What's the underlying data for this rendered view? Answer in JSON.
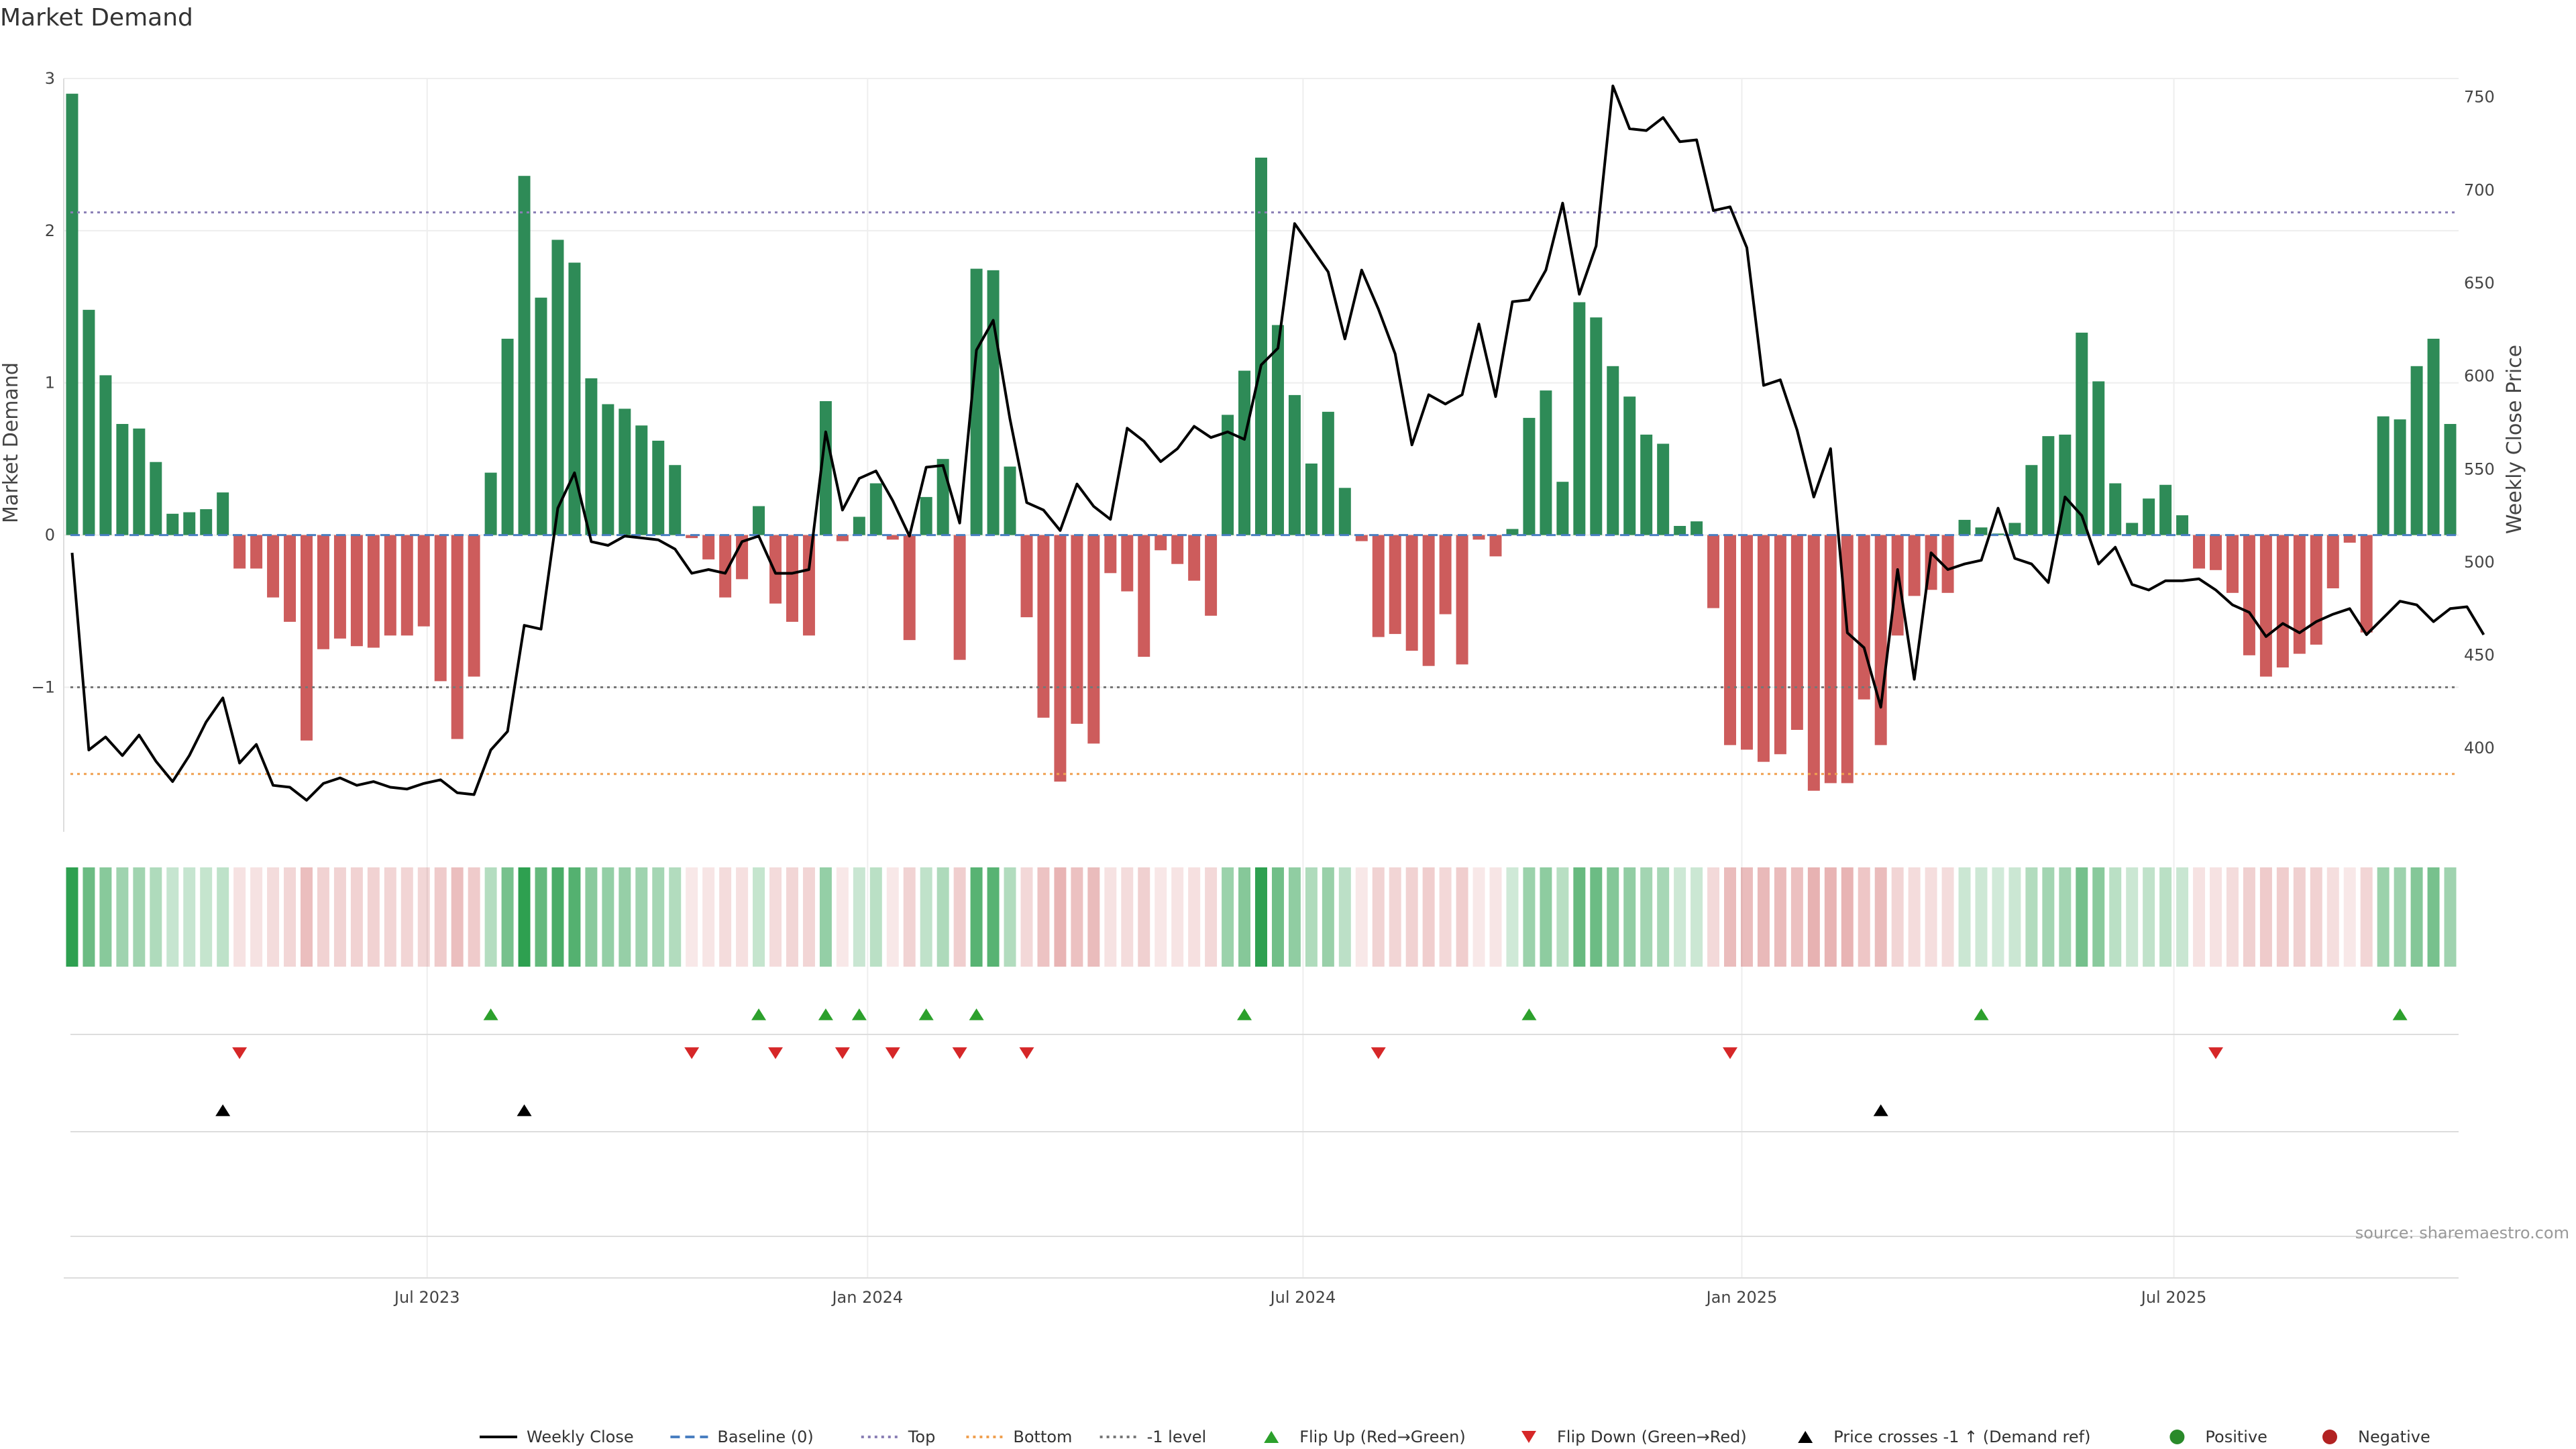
{
  "title": "Market Demand",
  "source_note": "source: sharemaestro.com",
  "chart_data": {
    "type": "bar",
    "title": "Market Demand",
    "ylabel_left": "Market Demand",
    "ylabel_right": "Weekly Close Price",
    "left_axis": {
      "ylim": [
        -1.95,
        3.0
      ],
      "ticks": [
        -1,
        0,
        1,
        2,
        3
      ],
      "tick_labels": [
        "−1",
        "0",
        "1",
        "2",
        "3"
      ]
    },
    "right_axis": {
      "ylim": [
        355,
        760
      ],
      "ticks": [
        400,
        450,
        500,
        550,
        600,
        650,
        700,
        750
      ]
    },
    "x_ticks": [
      {
        "week": 21.2,
        "label": "Jul 2023"
      },
      {
        "week": 47.5,
        "label": "Jan 2024"
      },
      {
        "week": 73.5,
        "label": "Jul 2024"
      },
      {
        "week": 99.7,
        "label": "Jan 2025"
      },
      {
        "week": 125.5,
        "label": "Jul 2025"
      }
    ],
    "reference_lines": {
      "top": 2.12,
      "bottom": -1.57,
      "minus_one": -1,
      "baseline": 0
    },
    "legend_position": "bottom-center",
    "colors": {
      "positive": "#2e8b57",
      "negative": "#cd5c5c",
      "price": "#000000",
      "top": "#8a7fb5",
      "bottom": "#f0a050",
      "flip_up": "#2ca02c",
      "flip_down": "#d62728"
    },
    "demand": [
      2.9,
      1.48,
      1.05,
      0.73,
      0.7,
      0.48,
      0.14,
      0.15,
      0.17,
      0.28,
      -0.22,
      -0.22,
      -0.41,
      -0.57,
      -1.35,
      -0.75,
      -0.68,
      -0.73,
      -0.74,
      -0.66,
      -0.66,
      -0.6,
      -0.96,
      -1.34,
      -0.93,
      0.41,
      1.29,
      2.36,
      1.56,
      1.94,
      1.79,
      1.03,
      0.86,
      0.83,
      0.72,
      0.62,
      0.46,
      -0.02,
      -0.16,
      -0.41,
      -0.29,
      0.19,
      -0.45,
      -0.57,
      -0.66,
      0.88,
      -0.04,
      0.12,
      0.34,
      -0.03,
      -0.69,
      0.25,
      0.5,
      -0.82,
      1.75,
      1.74,
      0.45,
      -0.54,
      -1.2,
      -1.62,
      -1.24,
      -1.37,
      -0.25,
      -0.37,
      -0.8,
      -0.1,
      -0.19,
      -0.3,
      -0.53,
      0.79,
      1.08,
      2.48,
      1.38,
      0.92,
      0.47,
      0.81,
      0.31,
      -0.04,
      -0.67,
      -0.65,
      -0.76,
      -0.86,
      -0.52,
      -0.85,
      -0.03,
      -0.14,
      0.04,
      0.77,
      0.95,
      0.35,
      1.53,
      1.43,
      1.11,
      0.91,
      0.66,
      0.6,
      0.06,
      0.09,
      -0.48,
      -1.38,
      -1.41,
      -1.49,
      -1.44,
      -1.28,
      -1.68,
      -1.63,
      -1.63,
      -1.08,
      -1.38,
      -0.66,
      -0.4,
      -0.36,
      -0.38,
      0.1,
      0.05,
      0.01,
      0.08,
      0.46,
      0.65,
      0.66,
      1.33,
      1.01,
      0.34,
      0.08,
      0.24,
      0.33,
      0.13,
      -0.22,
      -0.23,
      -0.38,
      -0.79,
      -0.93,
      -0.87,
      -0.78,
      -0.72,
      -0.35,
      -0.05,
      -0.64,
      0.78,
      0.76,
      1.11,
      1.29,
      0.73
    ],
    "weekly_close": [
      505,
      399,
      406,
      396,
      407,
      393,
      382,
      396,
      414,
      427,
      392,
      402,
      380,
      379,
      372,
      381,
      384,
      380,
      382,
      379,
      378,
      381,
      383,
      376,
      375,
      399,
      409,
      466,
      464,
      529,
      548,
      511,
      509,
      514,
      513,
      512,
      507,
      494,
      496,
      494,
      511,
      514,
      494,
      494,
      496,
      570,
      528,
      545,
      549,
      533,
      514,
      551,
      552,
      521,
      614,
      630,
      577,
      532,
      528,
      517,
      542,
      530,
      523,
      572,
      565,
      554,
      561,
      573,
      567,
      570,
      566,
      606,
      615,
      682,
      669,
      656,
      620,
      657,
      636,
      612,
      563,
      590,
      585,
      590,
      628,
      589,
      640,
      641,
      657,
      693,
      644,
      670,
      756,
      733,
      732,
      739,
      726,
      727,
      689,
      691,
      669,
      595,
      598,
      571,
      535,
      561,
      462,
      454,
      422,
      496,
      437,
      505,
      496,
      499,
      501,
      529,
      502,
      499,
      489,
      535,
      525,
      499,
      508,
      488,
      485,
      490,
      490,
      491,
      485,
      477,
      473,
      460,
      467,
      462,
      468,
      472,
      475,
      461,
      470,
      479,
      477,
      468,
      475,
      476,
      461
    ]
  },
  "signals": {
    "flip_up_weeks": [
      25,
      41,
      45,
      47,
      51,
      54,
      70,
      87,
      114,
      139
    ],
    "flip_down_weeks": [
      10,
      37,
      42,
      46,
      49,
      53,
      57,
      78,
      99,
      128
    ],
    "price_cross_weeks": [
      9,
      27,
      108
    ]
  },
  "legend": [
    {
      "label": "Weekly Close",
      "marker": "line",
      "color": "#000000"
    },
    {
      "label": "Baseline (0)",
      "marker": "dash",
      "color": "#4a7fc1"
    },
    {
      "label": "Top",
      "marker": "dot",
      "color": "#8a7fb5"
    },
    {
      "label": "Bottom",
      "marker": "dot",
      "color": "#f0a050"
    },
    {
      "label": "-1 level",
      "marker": "dot",
      "color": "#777777"
    },
    {
      "label": "Flip Up (Red→Green)",
      "marker": "tri-up",
      "color": "#2ca02c"
    },
    {
      "label": "Flip Down (Green→Red)",
      "marker": "tri-down",
      "color": "#d62728"
    },
    {
      "label": "Price crosses -1 ↑ (Demand ref)",
      "marker": "tri-up",
      "color": "#000000"
    },
    {
      "label": "Positive",
      "marker": "circle",
      "color": "#2a8a2a"
    },
    {
      "label": "Negative",
      "marker": "circle",
      "color": "#b22222"
    }
  ]
}
